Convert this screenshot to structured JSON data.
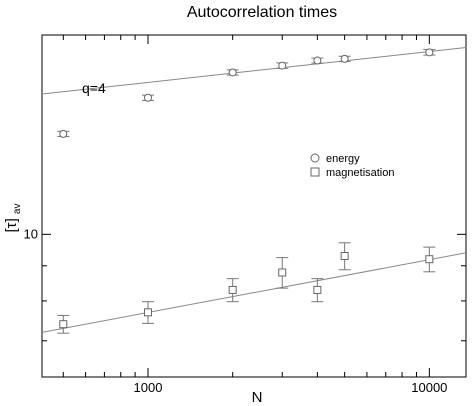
{
  "chart_data": {
    "type": "scatter",
    "title": "Autocorrelation times",
    "xlabel": "N",
    "ylabel": "[τ]",
    "ylabel_subscript": "av",
    "xscale": "log",
    "yscale": "log",
    "xlim": [
      420,
      13500
    ],
    "ylim": [
      6.2,
      19.5
    ],
    "x_ticks": [
      {
        "value": 1000,
        "label": "1000"
      },
      {
        "value": 10000,
        "label": "10000"
      }
    ],
    "y_ticks": [
      {
        "value": 10,
        "label": "10"
      }
    ],
    "annotation": "q=4",
    "legend_position": "right-middle",
    "series": [
      {
        "name": "energy",
        "marker": "circle",
        "x": [
          500,
          1000,
          2000,
          3000,
          4000,
          5000,
          10000
        ],
        "y": [
          14.0,
          15.8,
          17.2,
          17.6,
          17.9,
          18.0,
          18.4
        ],
        "err": [
          0.12,
          0.14,
          0.15,
          0.16,
          0.15,
          0.16,
          0.17
        ],
        "fit": {
          "x": [
            420,
            13500
          ],
          "y": [
            16.0,
            18.7
          ]
        }
      },
      {
        "name": "magnetisation",
        "marker": "square",
        "x": [
          500,
          1000,
          2000,
          3000,
          4000,
          5000,
          10000
        ],
        "y": [
          7.4,
          7.7,
          8.3,
          8.8,
          8.3,
          9.3,
          9.2
        ],
        "err": [
          0.22,
          0.28,
          0.32,
          0.45,
          0.32,
          0.42,
          0.38
        ],
        "fit": {
          "x": [
            420,
            13500
          ],
          "y": [
            7.2,
            9.4
          ]
        }
      }
    ]
  }
}
